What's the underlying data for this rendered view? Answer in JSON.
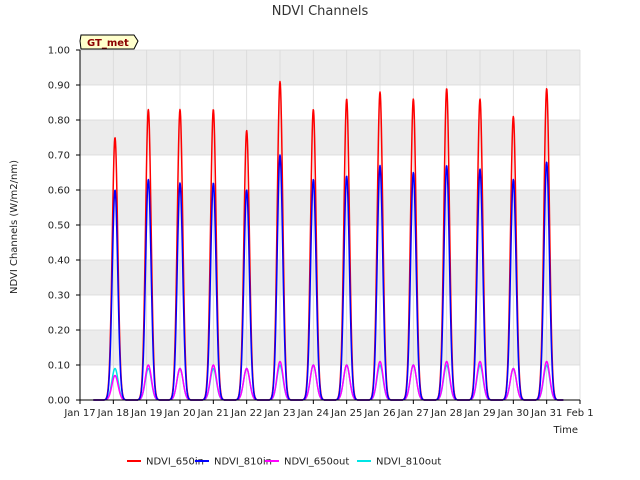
{
  "chart_data": {
    "type": "line",
    "title": "NDVI Channels",
    "xlabel": "Time",
    "ylabel": "NDVI Channels (W/m2/nm)",
    "badge": "GT_met",
    "ylim": [
      0.0,
      1.0
    ],
    "yticks": [
      "0.00",
      "0.10",
      "0.20",
      "0.30",
      "0.40",
      "0.50",
      "0.60",
      "0.70",
      "0.80",
      "0.90",
      "1.00"
    ],
    "xlim": [
      0,
      15
    ],
    "xticks": [
      "Jan 17",
      "Jan 18",
      "Jan 19",
      "Jan 20",
      "Jan 21",
      "Jan 22",
      "Jan 23",
      "Jan 24",
      "Jan 25",
      "Jan 26",
      "Jan 27",
      "Jan 28",
      "Jan 29",
      "Jan 30",
      "Jan 31",
      "Feb 1"
    ],
    "data_range": [
      0.4,
      14.5
    ],
    "day_centers": [
      1.05,
      2.05,
      3.0,
      4.0,
      5.0,
      6.0,
      7.0,
      8.0,
      9.0,
      10.0,
      11.0,
      12.0,
      13.0,
      14.0
    ],
    "series": [
      {
        "name": "NDVI_650in",
        "color": "#ff0000",
        "peaks": [
          0.75,
          0.83,
          0.83,
          0.83,
          0.77,
          0.91,
          0.83,
          0.86,
          0.88,
          0.86,
          0.89,
          0.86,
          0.81,
          0.89
        ]
      },
      {
        "name": "NDVI_810in",
        "color": "#0000ff",
        "peaks": [
          0.6,
          0.63,
          0.62,
          0.62,
          0.6,
          0.7,
          0.63,
          0.64,
          0.67,
          0.65,
          0.67,
          0.66,
          0.63,
          0.68
        ]
      },
      {
        "name": "NDVI_650out",
        "color": "#ff00ff",
        "peaks": [
          0.07,
          0.1,
          0.09,
          0.1,
          0.09,
          0.11,
          0.1,
          0.1,
          0.11,
          0.1,
          0.11,
          0.11,
          0.09,
          0.11
        ]
      },
      {
        "name": "NDVI_810out",
        "color": "#00e5e5",
        "peaks": [
          0.09,
          0.09,
          0.09,
          0.09,
          0.09,
          0.1,
          0.1,
          0.1,
          0.1,
          0.1,
          0.1,
          0.1,
          0.09,
          0.1
        ]
      }
    ]
  }
}
